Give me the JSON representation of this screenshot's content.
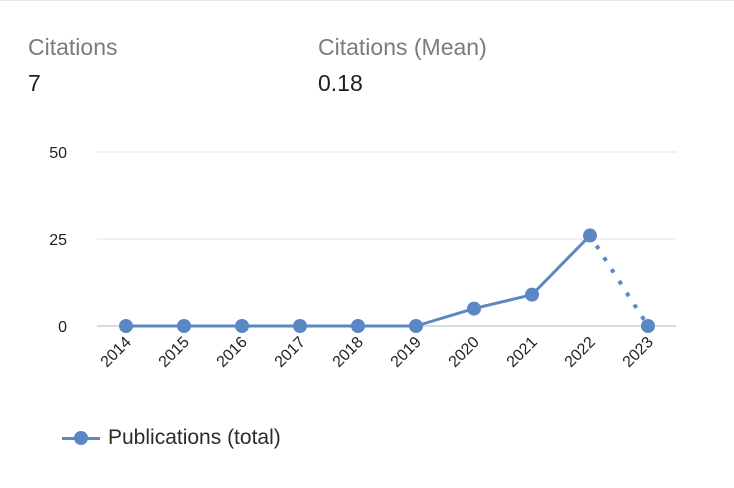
{
  "stats": {
    "citations": {
      "label": "Citations",
      "value": "7"
    },
    "mean": {
      "label": "Citations (Mean)",
      "value": "0.18"
    }
  },
  "chart_data": {
    "type": "line",
    "categories": [
      "2014",
      "2015",
      "2016",
      "2017",
      "2018",
      "2019",
      "2020",
      "2021",
      "2022",
      "2023"
    ],
    "series": [
      {
        "name": "Publications (total)",
        "values": [
          0,
          0,
          0,
          0,
          0,
          0,
          5,
          9,
          26,
          0
        ],
        "color": "#5b87c5",
        "dashed_last_segment": true
      }
    ],
    "yticks": [
      0,
      25,
      50
    ],
    "ylim": [
      0,
      50
    ],
    "grid": true,
    "legend_position": "bottom-left"
  }
}
